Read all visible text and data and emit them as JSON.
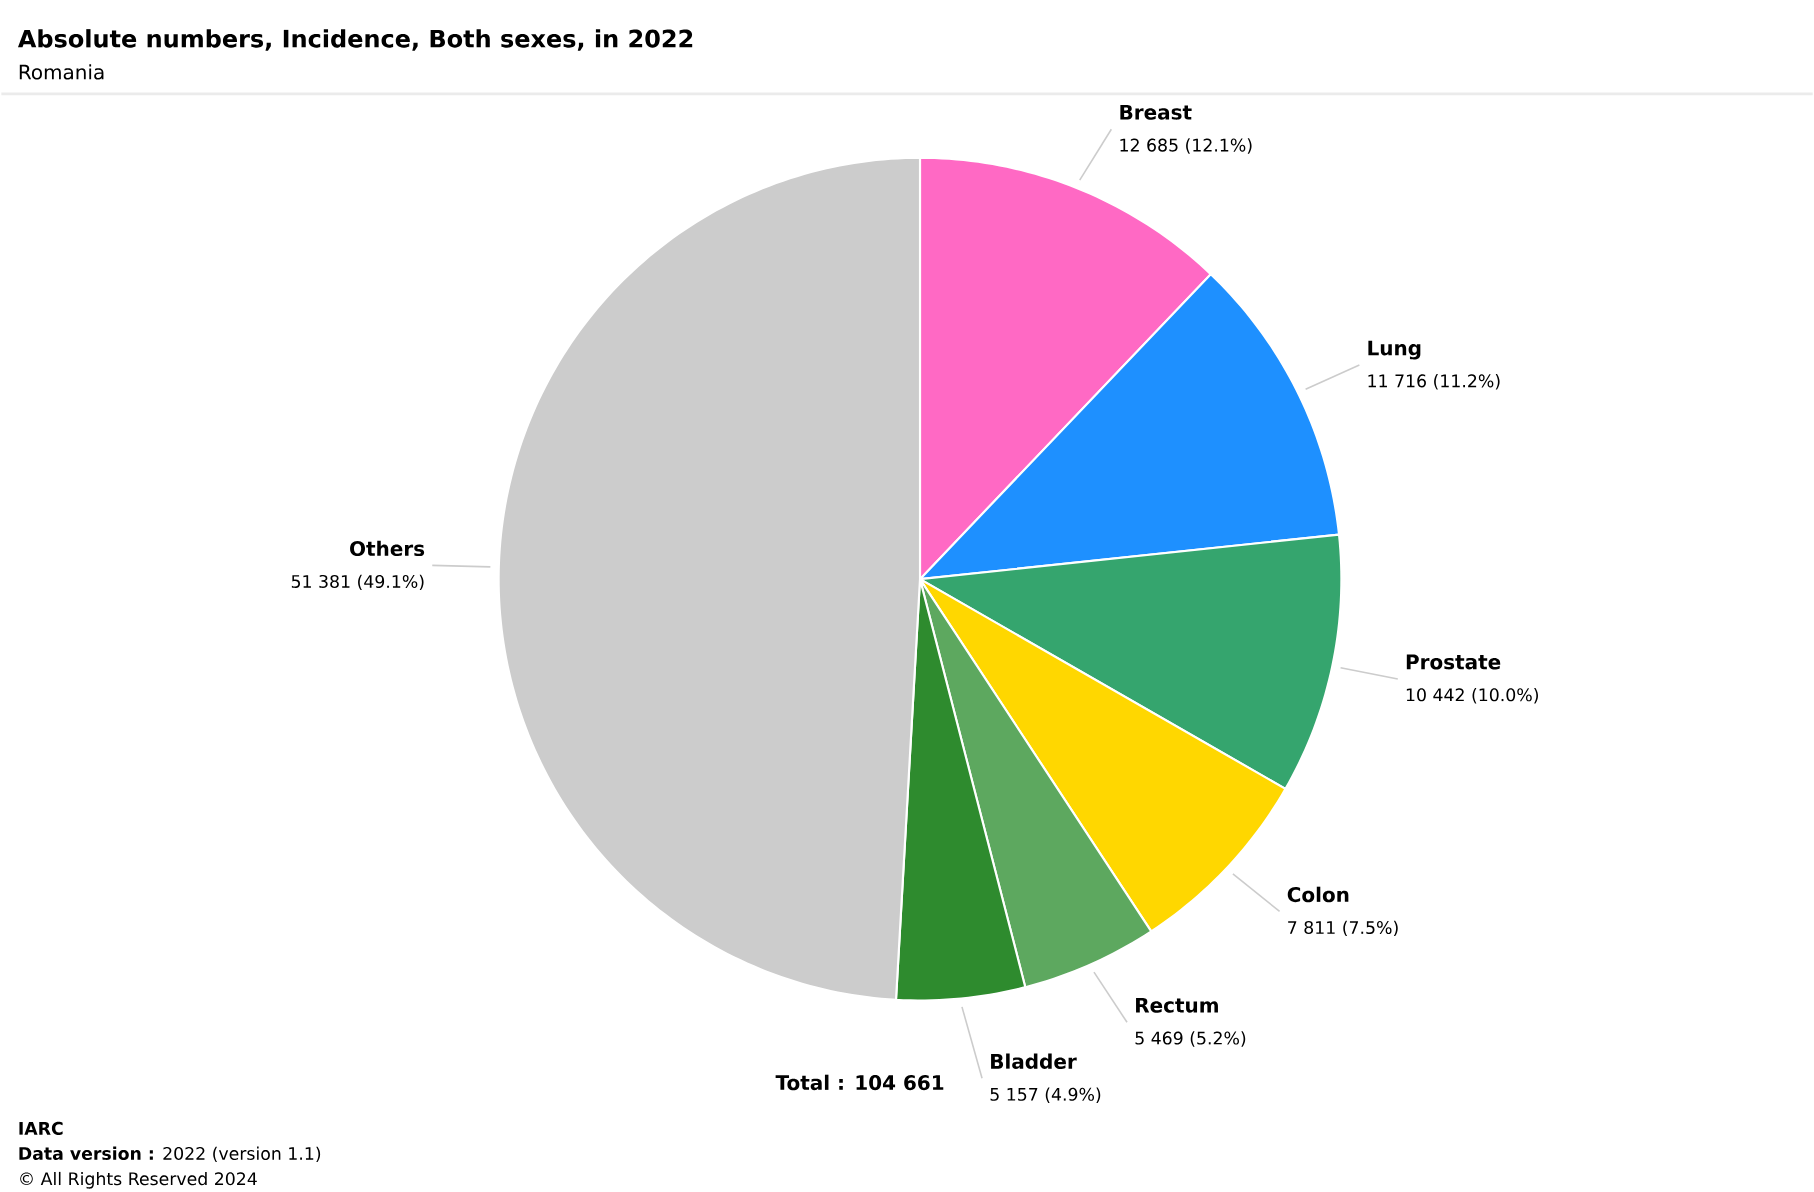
{
  "chart_data": {
    "type": "pie",
    "title": "Absolute numbers, Incidence, Both sexes, in 2022",
    "subtitle": "Romania",
    "categories": [
      "Breast",
      "Lung",
      "Prostate",
      "Colon",
      "Rectum",
      "Bladder",
      "Others"
    ],
    "values": [
      12685,
      11716,
      10442,
      7811,
      5469,
      5157,
      51381
    ],
    "colors": [
      "#ff69c4",
      "#1e90ff",
      "#35a56e",
      "#ffd700",
      "#5da85f",
      "#2e8b2e",
      "#cccccc"
    ],
    "value_labels": [
      "12 685 (12.1%)",
      "11 716 (11.2%)",
      "10 442 (10.0%)",
      "7 811 (7.5%)",
      "5 469 (5.2%)",
      "5 157 (4.9%)",
      "51 381 (49.1%)"
    ],
    "annotations": [
      "Total : 104 661",
      "**IARC**",
      "**Data version :** 2022 (version 1.1)",
      "© All Rights Reserved 2024"
    ]
  }
}
